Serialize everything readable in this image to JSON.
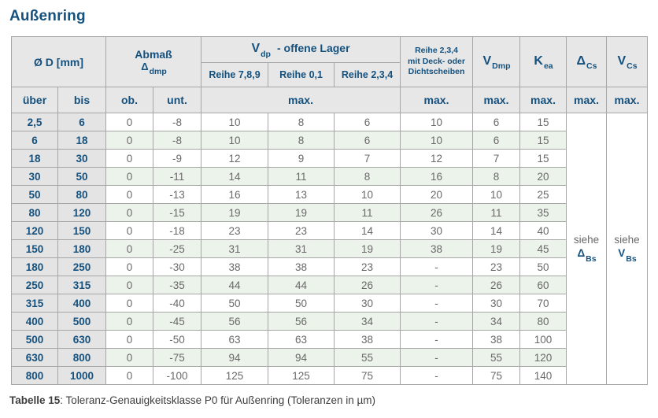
{
  "title": "Außenring",
  "header": {
    "diameter": "Ø D  [mm]",
    "abmass_line1": "Abmaß",
    "abmass_sym": "Δ",
    "abmass_sub": "dmp",
    "vdp_sym": "V",
    "vdp_sub": "dp",
    "vdp_rest": "-  offene Lager",
    "reihe789": "Reihe 7,8,9",
    "reihe01": "Reihe 0,1",
    "reihe234": "Reihe 2,3,4",
    "deck": [
      "Reihe 2,3,4",
      "mit Deck- oder",
      "Dichtscheiben"
    ],
    "vdmp_sym": "V",
    "vdmp_sub": "Dmp",
    "kea_sym": "K",
    "kea_sub": "ea",
    "dcs_sym": "Δ",
    "dcs_sub": "Cs",
    "vcs_sym": "V",
    "vcs_sub": "Cs",
    "ueber": "über",
    "bis": "bis",
    "ob": "ob.",
    "unt": "unt.",
    "max": "max."
  },
  "see_also": {
    "dcs": {
      "word": "siehe",
      "sym": "Δ",
      "sub": "Bs"
    },
    "vcs": {
      "word": "siehe",
      "sym": "V",
      "sub": "Bs"
    }
  },
  "table": {
    "columns": [
      "über",
      "bis",
      "ob.",
      "unt.",
      "Reihe 7,8,9",
      "Reihe 0,1",
      "Reihe 2,3,4",
      "Reihe 2,3,4 mit Deck- oder Dichtscheiben",
      "VDmp",
      "Kea"
    ],
    "rows": [
      [
        "2,5",
        "6",
        "0",
        "-8",
        "10",
        "8",
        "6",
        "10",
        "6",
        "15"
      ],
      [
        "6",
        "18",
        "0",
        "-8",
        "10",
        "8",
        "6",
        "10",
        "6",
        "15"
      ],
      [
        "18",
        "30",
        "0",
        "-9",
        "12",
        "9",
        "7",
        "12",
        "7",
        "15"
      ],
      [
        "30",
        "50",
        "0",
        "-11",
        "14",
        "11",
        "8",
        "16",
        "8",
        "20"
      ],
      [
        "50",
        "80",
        "0",
        "-13",
        "16",
        "13",
        "10",
        "20",
        "10",
        "25"
      ],
      [
        "80",
        "120",
        "0",
        "-15",
        "19",
        "19",
        "11",
        "26",
        "11",
        "35"
      ],
      [
        "120",
        "150",
        "0",
        "-18",
        "23",
        "23",
        "14",
        "30",
        "14",
        "40"
      ],
      [
        "150",
        "180",
        "0",
        "-25",
        "31",
        "31",
        "19",
        "38",
        "19",
        "45"
      ],
      [
        "180",
        "250",
        "0",
        "-30",
        "38",
        "38",
        "23",
        "-",
        "23",
        "50"
      ],
      [
        "250",
        "315",
        "0",
        "-35",
        "44",
        "44",
        "26",
        "-",
        "26",
        "60"
      ],
      [
        "315",
        "400",
        "0",
        "-40",
        "50",
        "50",
        "30",
        "-",
        "30",
        "70"
      ],
      [
        "400",
        "500",
        "0",
        "-45",
        "56",
        "56",
        "34",
        "-",
        "34",
        "80"
      ],
      [
        "500",
        "630",
        "0",
        "-50",
        "63",
        "63",
        "38",
        "-",
        "38",
        "100"
      ],
      [
        "630",
        "800",
        "0",
        "-75",
        "94",
        "94",
        "55",
        "-",
        "55",
        "120"
      ],
      [
        "800",
        "1000",
        "0",
        "-100",
        "125",
        "125",
        "75",
        "-",
        "75",
        "140"
      ]
    ]
  },
  "caption": {
    "bold": "Tabelle 15",
    "rest": ": Toleranz-Genauigkeitsklasse P0 für Außenring (Toleranzen in µm)"
  }
}
